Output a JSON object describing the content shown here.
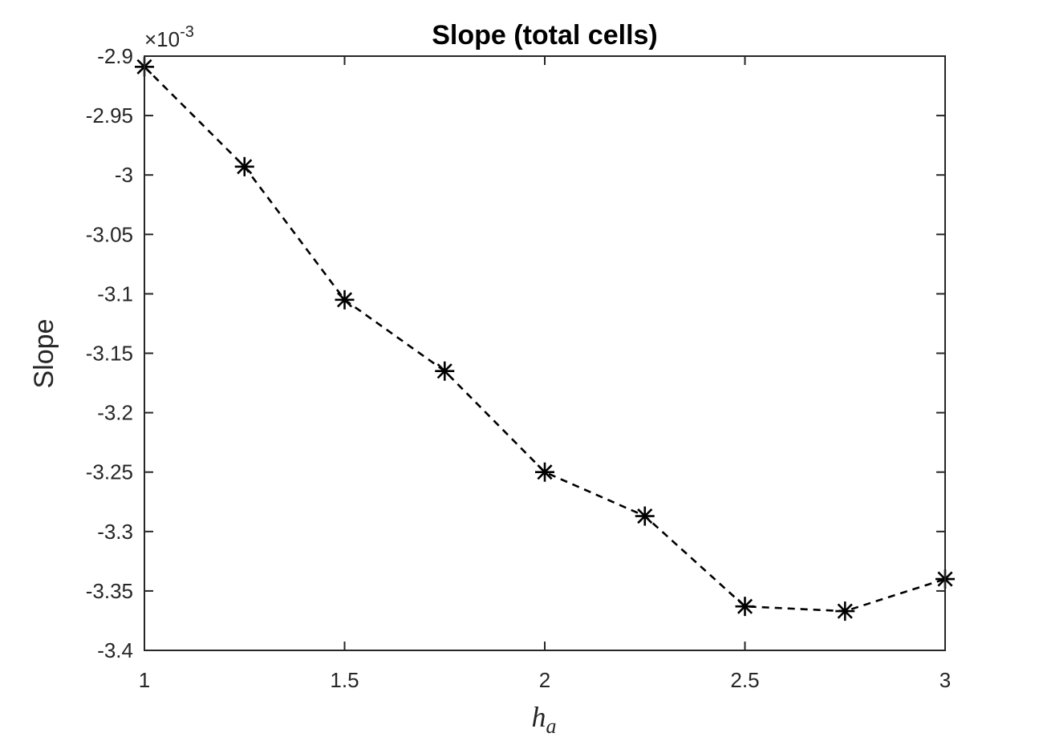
{
  "chart_data": {
    "type": "line",
    "title": "Slope (total cells)",
    "xlabel_main": "h",
    "xlabel_sub": "a",
    "ylabel": "Slope",
    "exponent_prefix": "×10",
    "exponent_power": "-3",
    "xlim": [
      1,
      3
    ],
    "ylim": [
      -3.4,
      -2.9
    ],
    "xticks": [
      1,
      1.5,
      2,
      2.5,
      3
    ],
    "xtick_labels": [
      "1",
      "1.5",
      "2",
      "2.5",
      "3"
    ],
    "yticks": [
      -2.9,
      -2.95,
      -3.0,
      -3.05,
      -3.1,
      -3.15,
      -3.2,
      -3.25,
      -3.3,
      -3.35,
      -3.4
    ],
    "ytick_labels": [
      "-2.9",
      "-2.95",
      "-3",
      "-3.05",
      "-3.1",
      "-3.15",
      "-3.2",
      "-3.25",
      "-3.3",
      "-3.35",
      "-3.4"
    ],
    "grid": false,
    "line_style": "dashed",
    "marker": "asterisk",
    "color": "#000000",
    "series": [
      {
        "x": [
          1,
          1.25,
          1.5,
          1.75,
          2,
          2.25,
          2.5,
          2.75,
          3
        ],
        "y": [
          -2.909,
          -2.993,
          -3.105,
          -3.165,
          -3.25,
          -3.287,
          -3.363,
          -3.367,
          -3.34
        ]
      }
    ]
  }
}
